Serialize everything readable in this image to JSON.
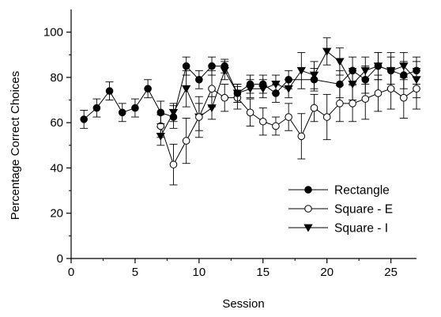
{
  "chart_data": {
    "type": "line",
    "xlabel": "Session",
    "ylabel": "Percentage Correct Choices",
    "xlim": [
      0,
      27
    ],
    "ylim": [
      0,
      110
    ],
    "x_ticks": [
      0,
      5,
      10,
      15,
      20,
      25
    ],
    "x_tick_labels": [
      "0",
      "5",
      "10",
      "15",
      "20",
      "25"
    ],
    "y_ticks": [
      0,
      20,
      40,
      60,
      80,
      100
    ],
    "y_tick_labels": [
      "0",
      "20",
      "40",
      "60",
      "80",
      "100"
    ],
    "grid": false,
    "legend_position": "bottom-right",
    "series": [
      {
        "name": "Rectangle",
        "marker": "circle-filled",
        "x": [
          1,
          2,
          3,
          4,
          5,
          6,
          7,
          8,
          9,
          10,
          11,
          12,
          13,
          14,
          15,
          16,
          17,
          19,
          21,
          22,
          23,
          24,
          25,
          26,
          27
        ],
        "y": [
          61.5,
          66.5,
          74,
          64.5,
          66.5,
          75,
          64.5,
          62.5,
          85,
          79,
          85,
          85,
          73,
          77,
          77,
          73,
          79,
          79,
          77,
          83,
          79,
          85,
          83,
          81,
          83
        ],
        "err": [
          4,
          4,
          4,
          4,
          4,
          4,
          5,
          5,
          4,
          4,
          4,
          3,
          4,
          4,
          4,
          4,
          4,
          5,
          6,
          6,
          6,
          6,
          6,
          6,
          6
        ]
      },
      {
        "name": "Square - E",
        "marker": "circle-open",
        "x": [
          7,
          8,
          9,
          10,
          11,
          12,
          13,
          14,
          15,
          16,
          17,
          18,
          19,
          20,
          21,
          22,
          23,
          24,
          25,
          26,
          27
        ],
        "y": [
          58.5,
          41.5,
          52,
          62.5,
          75,
          71,
          71,
          64.5,
          60.5,
          58.5,
          62.5,
          54,
          66.5,
          62.5,
          68.5,
          68.5,
          70.5,
          73,
          75,
          71,
          75
        ],
        "err": [
          5,
          9,
          10,
          9,
          8,
          6,
          5,
          6,
          6,
          4,
          6,
          10,
          6,
          10,
          8,
          8,
          9,
          8,
          9,
          9,
          9
        ]
      },
      {
        "name": "Square - I",
        "marker": "triangle-down",
        "x": [
          7,
          8,
          9,
          10,
          11,
          12,
          13,
          14,
          15,
          16,
          17,
          18,
          19,
          20,
          21,
          22,
          23,
          24,
          25,
          26,
          27
        ],
        "y": [
          54,
          64.5,
          75,
          62.5,
          66.5,
          83,
          73,
          75,
          75,
          77,
          75,
          83,
          81,
          91.5,
          87,
          77,
          83,
          85,
          83,
          85,
          79
        ],
        "err": [
          4,
          4,
          8,
          6,
          5,
          4,
          4,
          4,
          4,
          4,
          4,
          8,
          6,
          6,
          6,
          7,
          6,
          6,
          8,
          6,
          8
        ]
      }
    ]
  }
}
